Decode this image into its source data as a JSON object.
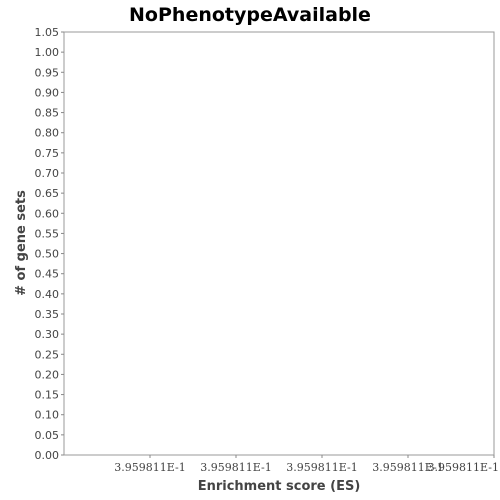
{
  "chart_data": {
    "type": "bar",
    "title": "NoPhenotypeAvailable",
    "xlabel": "Enrichment score (ES)",
    "ylabel": "# of gene sets",
    "ylim": [
      0,
      1.05
    ],
    "y_ticks": [
      "0.00",
      "0.05",
      "0.10",
      "0.15",
      "0.20",
      "0.25",
      "0.30",
      "0.35",
      "0.40",
      "0.45",
      "0.50",
      "0.55",
      "0.60",
      "0.65",
      "0.70",
      "0.75",
      "0.80",
      "0.85",
      "0.90",
      "0.95",
      "1.00",
      "1.05"
    ],
    "x_ticks": [
      "3.959811E-1",
      "3.959811E-1",
      "3.959811E-1",
      "3.959811E-1",
      "3.959811E-1"
    ],
    "grid": true,
    "values": []
  }
}
